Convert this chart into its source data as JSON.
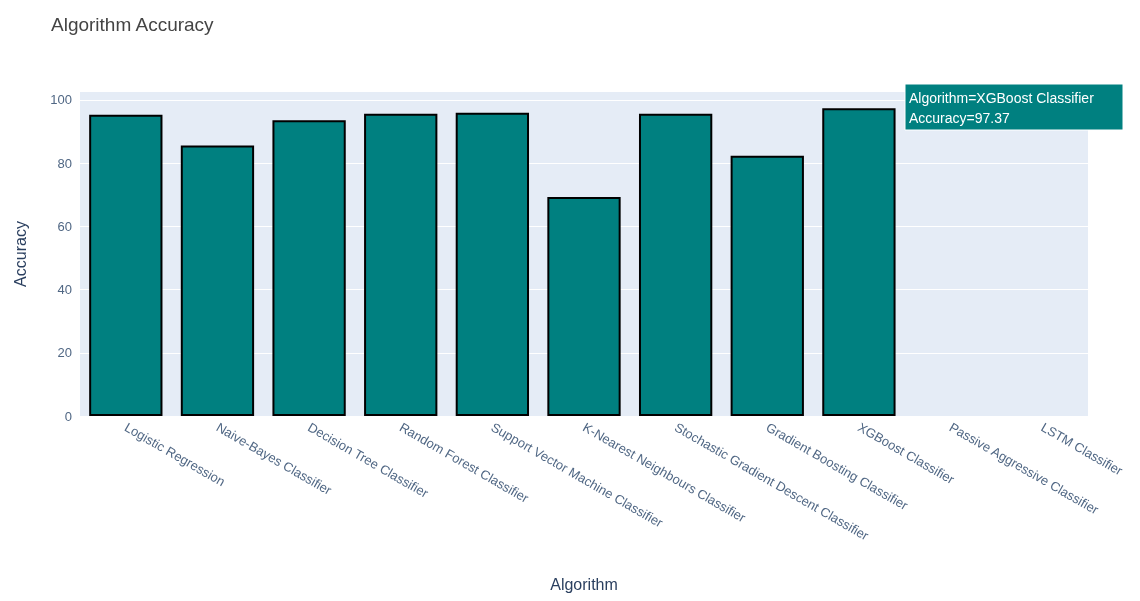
{
  "chart_data": {
    "type": "bar",
    "title": "Algorithm Accuracy",
    "xlabel": "Algorithm",
    "ylabel": "Accuracy",
    "categories": [
      "Logistic Regression",
      "Naive-Bayes Classifier",
      "Decision Tree Classifier",
      "Random Forest Classifier",
      "Support Vector Machine Classifier",
      "K-Nearest Neighbours Classifier",
      "Stochastic Gradient Descent Classifier",
      "Gradient Boosting Classifier",
      "XGBoost Classifier",
      "Passive Aggressive Classifier",
      "LSTM Classifier"
    ],
    "values": [
      95.3,
      85.6,
      93.6,
      95.6,
      95.9,
      69.3,
      95.6,
      82.3,
      97.37,
      null,
      null
    ],
    "color": "#008080",
    "ylim": [
      0,
      102.5
    ],
    "yticks": [
      0,
      20,
      40,
      60,
      80,
      100
    ],
    "grid": "y",
    "annotations": [
      "Algorithm=XGBoost Classifier\nAccuracy=97.37"
    ]
  }
}
